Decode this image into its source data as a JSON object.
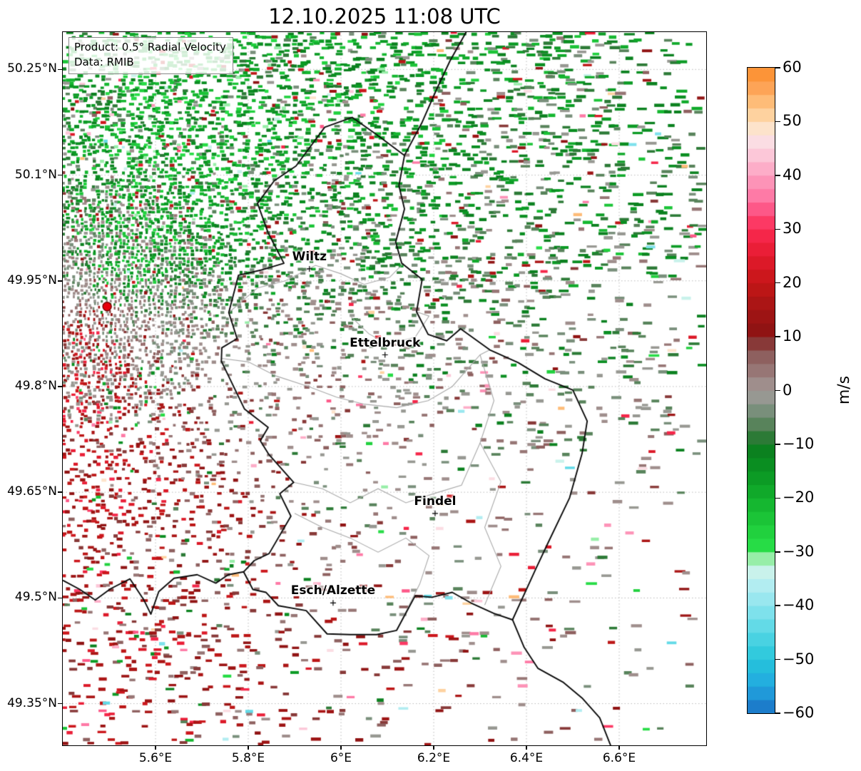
{
  "title": "12.10.2025 11:08 UTC",
  "annotation": {
    "line1": "Product: 0.5° Radial Velocity",
    "line2": "Data: RMIB"
  },
  "axes": {
    "x_ticks": [
      {
        "lon": 5.6,
        "label": "5.6°E"
      },
      {
        "lon": 5.8,
        "label": "5.8°E"
      },
      {
        "lon": 6.0,
        "label": "6°E"
      },
      {
        "lon": 6.2,
        "label": "6.2°E"
      },
      {
        "lon": 6.4,
        "label": "6.4°E"
      },
      {
        "lon": 6.6,
        "label": "6.6°E"
      }
    ],
    "y_ticks": [
      {
        "lat": 50.25,
        "label": "50.25°N"
      },
      {
        "lat": 50.1,
        "label": "50.1°N"
      },
      {
        "lat": 49.95,
        "label": "49.95°N"
      },
      {
        "lat": 49.8,
        "label": "49.8°N"
      },
      {
        "lat": 49.65,
        "label": "49.65°N"
      },
      {
        "lat": 49.5,
        "label": "49.5°N"
      },
      {
        "lat": 49.35,
        "label": "49.35°N"
      }
    ]
  },
  "colorbar": {
    "label": "m/s",
    "vmin": -60,
    "vmax": 60,
    "band_step": 2.5,
    "ticks": [
      {
        "v": 60,
        "label": "60"
      },
      {
        "v": 50,
        "label": "50"
      },
      {
        "v": 40,
        "label": "40"
      },
      {
        "v": 30,
        "label": "30"
      },
      {
        "v": 20,
        "label": "20"
      },
      {
        "v": 10,
        "label": "10"
      },
      {
        "v": 0,
        "label": "0"
      },
      {
        "v": -10,
        "label": "−10"
      },
      {
        "v": -20,
        "label": "−20"
      },
      {
        "v": -30,
        "label": "−30"
      },
      {
        "v": -40,
        "label": "−40"
      },
      {
        "v": -50,
        "label": "−50"
      },
      {
        "v": -60,
        "label": "−60"
      }
    ],
    "stops": [
      [
        -60,
        "#1a6fc4"
      ],
      [
        -55,
        "#22a7e0"
      ],
      [
        -50,
        "#26c6da"
      ],
      [
        -45,
        "#55d6e4"
      ],
      [
        -40,
        "#8ce4ee"
      ],
      [
        -35,
        "#bff0f2"
      ],
      [
        -32,
        "#d8f5e0"
      ],
      [
        -30,
        "#2ae24a"
      ],
      [
        -25,
        "#1ecb3a"
      ],
      [
        -20,
        "#12b02c"
      ],
      [
        -15,
        "#0a9422"
      ],
      [
        -10,
        "#0b7a1e"
      ],
      [
        -8,
        "#3f7a44"
      ],
      [
        -5,
        "#6a8a6c"
      ],
      [
        -2,
        "#8f978f"
      ],
      [
        0,
        "#a39a98"
      ],
      [
        2,
        "#9c8684"
      ],
      [
        5,
        "#936b6a"
      ],
      [
        8,
        "#86504f"
      ],
      [
        10,
        "#8a1212"
      ],
      [
        15,
        "#a31414"
      ],
      [
        20,
        "#c41616"
      ],
      [
        25,
        "#e41a2e"
      ],
      [
        30,
        "#fb2a52"
      ],
      [
        33,
        "#fd4d7e"
      ],
      [
        36,
        "#fe77a4"
      ],
      [
        40,
        "#fda0c0"
      ],
      [
        43,
        "#fcc0d4"
      ],
      [
        46,
        "#fbdce4"
      ],
      [
        48,
        "#fde7d8"
      ],
      [
        50,
        "#fedcb4"
      ],
      [
        53,
        "#fec382"
      ],
      [
        56,
        "#fda65a"
      ],
      [
        60,
        "#fb8c28"
      ]
    ]
  },
  "map": {
    "radar_site": {
      "lon": 5.4956,
      "lat": 49.9135,
      "marker_color": "#e8000b",
      "marker_edge": "#7a0000"
    },
    "cities": [
      {
        "name": "Wiltz",
        "lon": 5.932,
        "lat": 49.967
      },
      {
        "name": "Ettelbruck",
        "lon": 6.095,
        "lat": 49.845
      },
      {
        "name": "Findel",
        "lon": 6.203,
        "lat": 49.62
      },
      {
        "name": "Esch/Alzette",
        "lon": 5.983,
        "lat": 49.493
      }
    ],
    "country_border": [
      [
        5.965,
        50.168
      ],
      [
        6.024,
        50.182
      ],
      [
        6.078,
        50.157
      ],
      [
        6.137,
        50.128
      ],
      [
        6.125,
        50.085
      ],
      [
        6.137,
        50.052
      ],
      [
        6.118,
        50.005
      ],
      [
        6.131,
        49.975
      ],
      [
        6.175,
        49.952
      ],
      [
        6.163,
        49.906
      ],
      [
        6.188,
        49.874
      ],
      [
        6.228,
        49.865
      ],
      [
        6.258,
        49.882
      ],
      [
        6.321,
        49.852
      ],
      [
        6.382,
        49.834
      ],
      [
        6.44,
        49.811
      ],
      [
        6.5,
        49.795
      ],
      [
        6.531,
        49.751
      ],
      [
        6.52,
        49.705
      ],
      [
        6.493,
        49.642
      ],
      [
        6.445,
        49.576
      ],
      [
        6.42,
        49.541
      ],
      [
        6.37,
        49.469
      ],
      [
        6.33,
        49.478
      ],
      [
        6.28,
        49.493
      ],
      [
        6.24,
        49.508
      ],
      [
        6.196,
        49.501
      ],
      [
        6.16,
        49.503
      ],
      [
        6.12,
        49.454
      ],
      [
        6.077,
        49.448
      ],
      [
        6.02,
        49.448
      ],
      [
        5.97,
        49.449
      ],
      [
        5.925,
        49.482
      ],
      [
        5.865,
        49.489
      ],
      [
        5.838,
        49.508
      ],
      [
        5.81,
        49.512
      ],
      [
        5.79,
        49.537
      ],
      [
        5.813,
        49.553
      ],
      [
        5.845,
        49.563
      ],
      [
        5.892,
        49.616
      ],
      [
        5.868,
        49.648
      ],
      [
        5.898,
        49.664
      ],
      [
        5.844,
        49.704
      ],
      [
        5.826,
        49.723
      ],
      [
        5.843,
        49.742
      ],
      [
        5.792,
        49.768
      ],
      [
        5.742,
        49.836
      ],
      [
        5.743,
        49.855
      ],
      [
        5.776,
        49.868
      ],
      [
        5.758,
        49.905
      ],
      [
        5.779,
        49.958
      ],
      [
        5.832,
        49.966
      ],
      [
        5.877,
        49.975
      ],
      [
        5.843,
        50.018
      ],
      [
        5.82,
        50.06
      ],
      [
        5.856,
        50.092
      ],
      [
        5.903,
        50.113
      ],
      [
        5.965,
        50.168
      ]
    ],
    "border_northeast": [
      [
        6.27,
        50.303
      ],
      [
        6.235,
        50.262
      ],
      [
        6.205,
        50.22
      ],
      [
        6.175,
        50.175
      ],
      [
        6.137,
        50.128
      ]
    ],
    "border_southwest": [
      [
        5.4,
        49.525
      ],
      [
        5.437,
        49.512
      ],
      [
        5.47,
        49.497
      ],
      [
        5.503,
        49.513
      ],
      [
        5.545,
        49.527
      ],
      [
        5.575,
        49.497
      ],
      [
        5.59,
        49.477
      ],
      [
        5.607,
        49.509
      ],
      [
        5.64,
        49.528
      ],
      [
        5.69,
        49.533
      ],
      [
        5.73,
        49.521
      ],
      [
        5.757,
        49.533
      ],
      [
        5.79,
        49.537
      ]
    ],
    "border_southeast": [
      [
        6.37,
        49.469
      ],
      [
        6.395,
        49.43
      ],
      [
        6.425,
        49.4
      ],
      [
        6.48,
        49.38
      ],
      [
        6.52,
        49.358
      ],
      [
        6.558,
        49.33
      ],
      [
        6.585,
        49.285
      ]
    ],
    "district_borders": [
      [
        [
          5.758,
          49.905
        ],
        [
          5.82,
          49.94
        ],
        [
          5.88,
          49.95
        ],
        [
          5.945,
          49.972
        ],
        [
          6.0,
          49.96
        ],
        [
          6.05,
          49.945
        ],
        [
          6.105,
          49.955
        ],
        [
          6.135,
          49.975
        ]
      ],
      [
        [
          5.742,
          49.84
        ],
        [
          5.8,
          49.835
        ],
        [
          5.86,
          49.815
        ],
        [
          5.93,
          49.8
        ],
        [
          5.99,
          49.785
        ],
        [
          6.05,
          49.775
        ],
        [
          6.12,
          49.77
        ],
        [
          6.188,
          49.78
        ],
        [
          6.24,
          49.8
        ],
        [
          6.3,
          49.845
        ],
        [
          6.321,
          49.852
        ]
      ],
      [
        [
          6.3,
          49.845
        ],
        [
          6.33,
          49.78
        ],
        [
          6.3,
          49.72
        ],
        [
          6.345,
          49.665
        ],
        [
          6.31,
          49.6
        ],
        [
          6.345,
          49.545
        ],
        [
          6.31,
          49.49
        ]
      ],
      [
        [
          5.898,
          49.664
        ],
        [
          5.96,
          49.655
        ],
        [
          6.02,
          49.635
        ],
        [
          6.08,
          49.655
        ],
        [
          6.14,
          49.635
        ],
        [
          6.2,
          49.648
        ],
        [
          6.26,
          49.66
        ],
        [
          6.3,
          49.72
        ]
      ],
      [
        [
          5.9,
          49.62
        ],
        [
          5.96,
          49.6
        ],
        [
          6.02,
          49.585
        ],
        [
          6.08,
          49.565
        ],
        [
          6.14,
          49.585
        ],
        [
          6.19,
          49.56
        ],
        [
          6.17,
          49.52
        ],
        [
          6.12,
          49.454
        ]
      ],
      [
        [
          6.02,
          49.9
        ],
        [
          6.06,
          49.875
        ],
        [
          6.1,
          49.86
        ],
        [
          6.16,
          49.87
        ],
        [
          6.19,
          49.9
        ],
        [
          6.163,
          49.906
        ]
      ]
    ]
  },
  "chart_data": {
    "type": "heatmap",
    "title": "12.10.2025 11:08 UTC",
    "product": "0.5° Radial Velocity",
    "data_source": "RMIB",
    "units": "m/s",
    "value_range": [
      -60,
      60
    ],
    "lon_range": [
      5.4,
      6.79
    ],
    "lat_range": [
      49.29,
      50.3
    ],
    "x_tick_labels": [
      "5.6°E",
      "5.8°E",
      "6°E",
      "6.2°E",
      "6.4°E",
      "6.6°E"
    ],
    "y_tick_labels": [
      "50.25°N",
      "50.1°N",
      "49.95°N",
      "49.8°N",
      "49.65°N",
      "49.5°N",
      "49.35°N"
    ],
    "colorbar_tick_step": 10,
    "grid": "dotted",
    "legend_position": "right colorbar",
    "radar_site": {
      "lon": 5.4956,
      "lat": 49.9135
    },
    "field": {
      "seed": 1234,
      "wind_from_deg": 22,
      "clutter_radius": 175,
      "clutter_density": 0.85,
      "green_density": 1.0,
      "green_scale": 420,
      "red_density": 0.65,
      "red_scale": 300,
      "zero_density": 0.5,
      "zero_scale": 200,
      "background_density": 0.012,
      "speed_mean": 17,
      "speed_spread": 9,
      "noise": 5,
      "flip_chance": 0.05
    }
  }
}
